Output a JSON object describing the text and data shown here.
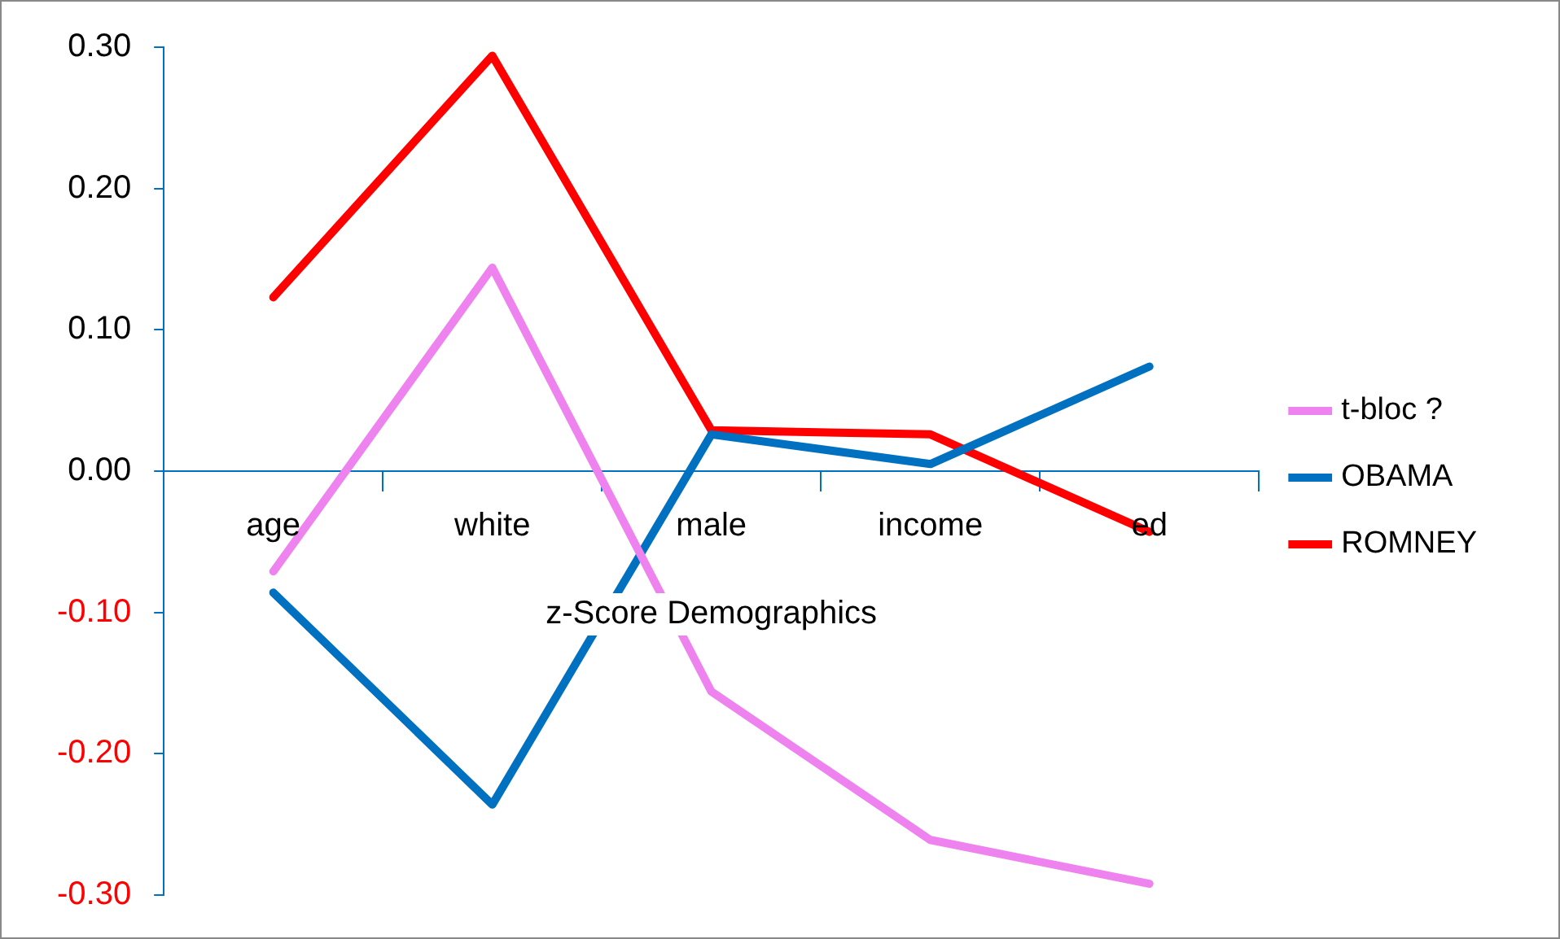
{
  "chart_data": {
    "type": "line",
    "xlabel": "z-Score Demographics",
    "categories": [
      "age",
      "white",
      "male",
      "income",
      "ed"
    ],
    "series": [
      {
        "name": "t-bloc ?",
        "color": "#ee82ee",
        "values": [
          -0.071,
          0.144,
          -0.156,
          -0.261,
          -0.292
        ]
      },
      {
        "name": "OBAMA",
        "color": "#0070c0",
        "values": [
          -0.086,
          -0.236,
          0.026,
          0.005,
          0.074
        ]
      },
      {
        "name": "ROMNEY",
        "color": "#ff0000",
        "values": [
          0.123,
          0.294,
          0.029,
          0.026,
          -0.043
        ]
      }
    ],
    "ylim": [
      -0.3,
      0.3
    ],
    "yticks": [
      {
        "value": -0.3,
        "label": "-0.30"
      },
      {
        "value": -0.2,
        "label": "-0.20"
      },
      {
        "value": -0.1,
        "label": "-0.10"
      },
      {
        "value": 0,
        "label": "0.00"
      },
      {
        "value": 0.1,
        "label": "0.10"
      },
      {
        "value": 0.2,
        "label": "0.20"
      },
      {
        "value": 0.3,
        "label": "0.30"
      }
    ],
    "grid": false,
    "legend": "right",
    "marker": "none",
    "line_style": "solid"
  }
}
